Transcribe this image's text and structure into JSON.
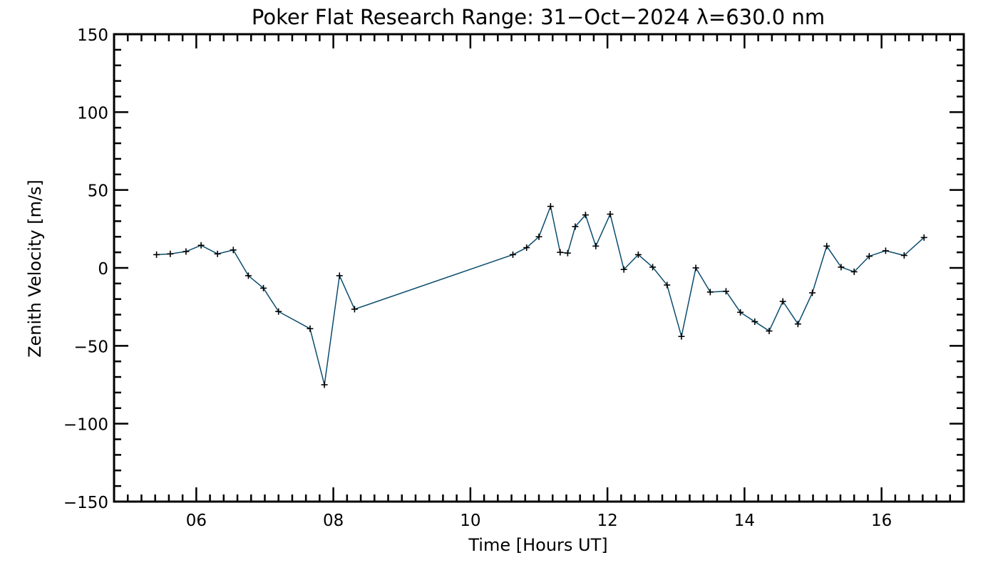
{
  "chart_data": {
    "type": "line",
    "title": "Poker Flat Research Range: 31−Oct−2024 λ=630.0 nm",
    "xlabel": "Time [Hours UT]",
    "ylabel": "Zenith Velocity [m/s]",
    "xlim": [
      4.8,
      17.2
    ],
    "ylim": [
      -150,
      150
    ],
    "x_ticks": [
      6,
      8,
      10,
      12,
      14,
      16
    ],
    "x_tick_labels": [
      "06",
      "08",
      "10",
      "12",
      "14",
      "16"
    ],
    "x_minor_step": 0.2,
    "y_ticks": [
      -150,
      -100,
      -50,
      0,
      50,
      100,
      150
    ],
    "y_tick_labels": [
      "−150",
      "−100",
      "−50",
      "0",
      "50",
      "100",
      "150"
    ],
    "y_minor_step": 10,
    "grid": false,
    "legend": false,
    "series_color": "#0b4c6e",
    "marker_color": "#000000",
    "series": [
      {
        "marker": "plus",
        "x": [
          5.42,
          5.62,
          5.85,
          6.07,
          6.31,
          6.54,
          6.76,
          6.98,
          7.2,
          7.66,
          7.87,
          8.09,
          8.31,
          10.62,
          10.82,
          11.0,
          11.17,
          11.31,
          11.42,
          11.53,
          11.68,
          11.83,
          12.04,
          12.24,
          12.45,
          12.66,
          12.87,
          13.08,
          13.29,
          13.5,
          13.73,
          13.94,
          14.15,
          14.36,
          14.56,
          14.78,
          14.99,
          15.2,
          15.41,
          15.6,
          15.82,
          16.06,
          16.33,
          16.62
        ],
        "y": [
          8.5,
          9,
          10.5,
          14.5,
          9,
          11.5,
          -5,
          -13,
          -28,
          -39,
          -75,
          -5,
          -26.5,
          8.5,
          13,
          20,
          39.5,
          10,
          9.5,
          26.5,
          34,
          14,
          34.5,
          -1,
          8.5,
          0.5,
          -11,
          -44,
          0,
          -15.5,
          -15,
          -28.5,
          -34.5,
          -40.5,
          -21.5,
          -36,
          -16,
          14,
          0.5,
          -2.5,
          7.5,
          11,
          8,
          19.5
        ]
      }
    ]
  }
}
